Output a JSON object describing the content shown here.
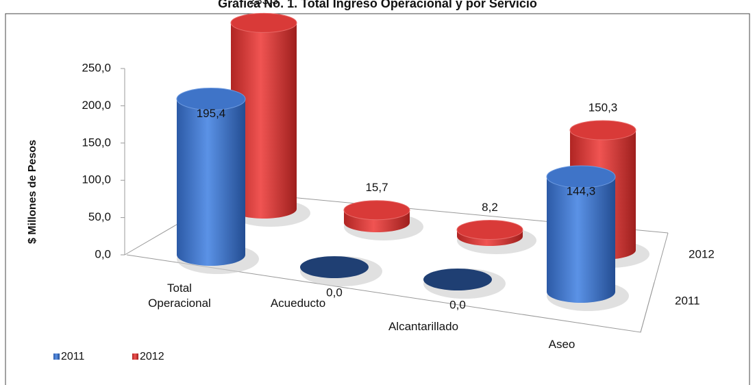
{
  "chart_data": {
    "type": "cylinder3d",
    "title": "Gráfica No. 1. Total Ingreso Operacional y por Servicio",
    "y_label": "$ Millones de Pesos",
    "categories": [
      "Total Operacional",
      "Acueducto",
      "Alcantarillado",
      "Aseo"
    ],
    "series": [
      {
        "name": "2011",
        "color": "#3f74c8",
        "values": [
          195.4,
          0,
          0,
          144.3
        ],
        "value_labels": [
          "195,4",
          "0,0",
          "0,0",
          "144,3"
        ]
      },
      {
        "name": "2012",
        "color": "#d93a38",
        "values": [
          233.3,
          15.7,
          8.2,
          150.3
        ],
        "value_labels": [
          "233,3",
          "15,7",
          "8,2",
          "150,3"
        ]
      }
    ],
    "ylim": [
      0,
      250
    ],
    "yticks": [
      {
        "value": 0,
        "label": "0,0"
      },
      {
        "value": 50,
        "label": "50,0"
      },
      {
        "value": 100,
        "label": "100,0"
      },
      {
        "value": 150,
        "label": "150,0"
      },
      {
        "value": 200,
        "label": "200,0"
      },
      {
        "value": 250,
        "label": "250,0"
      }
    ],
    "legend": "bottom-left"
  }
}
